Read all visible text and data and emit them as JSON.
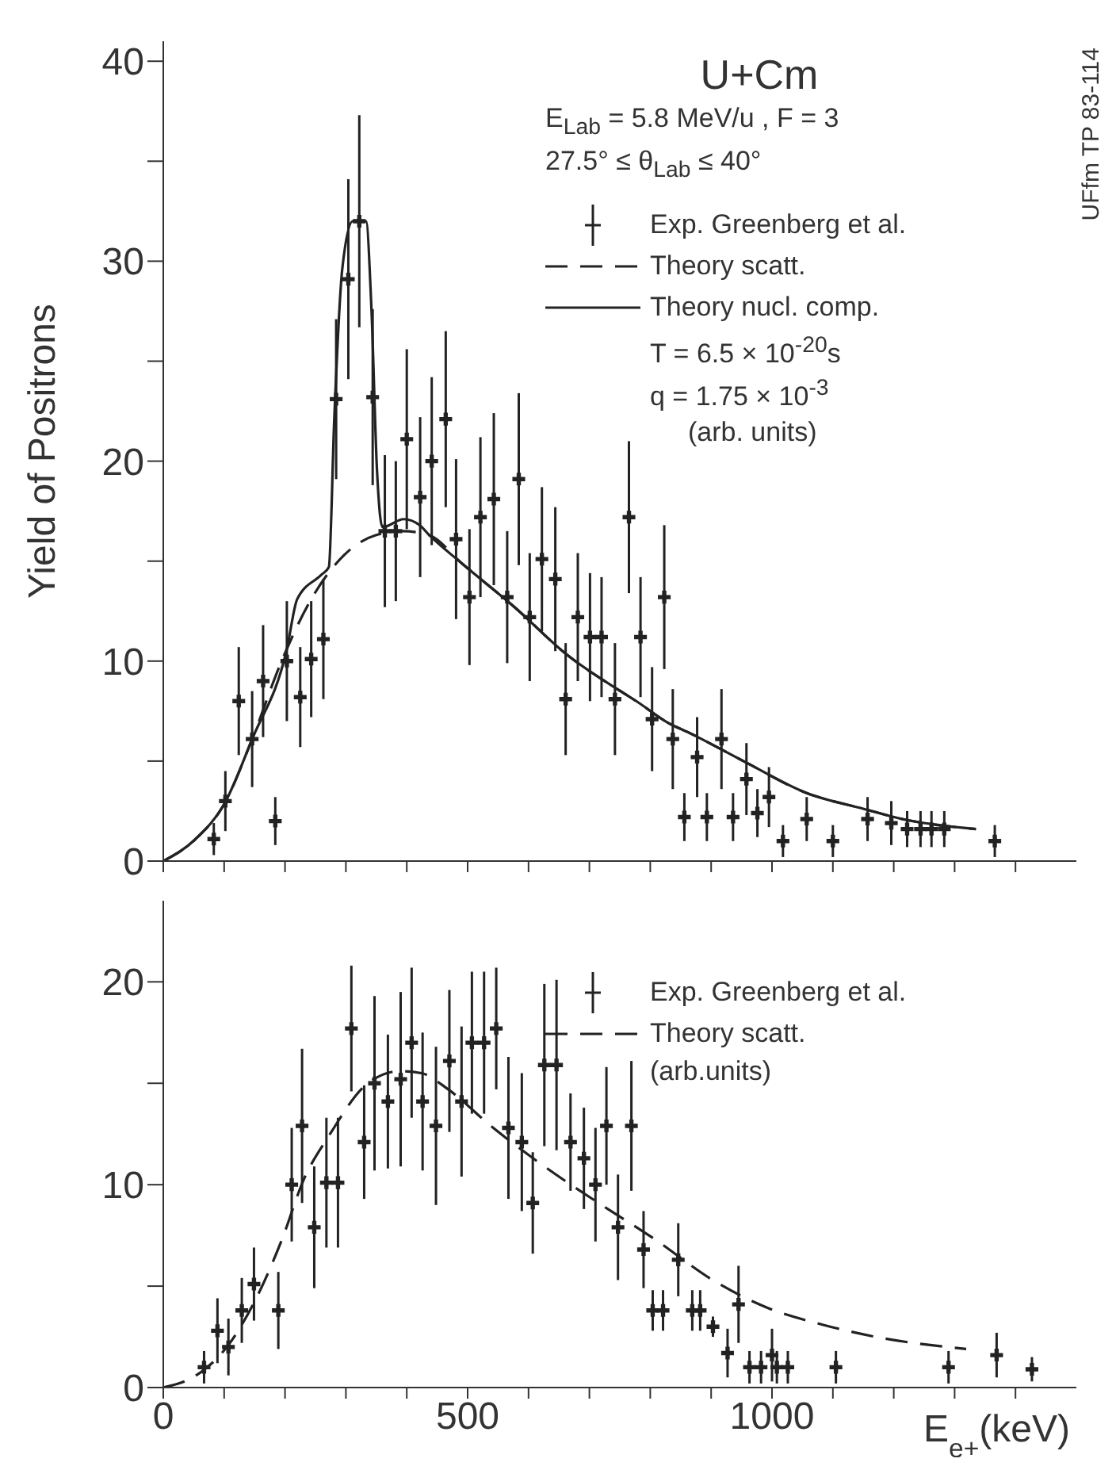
{
  "chart_data": [
    {
      "type": "scatter",
      "title": "U+Cm",
      "subtitle": "E$_{Lab}$ = 5.8 MeV/u , F = 3",
      "ylabel": "Yield of Positrons",
      "legend": "top right",
      "tick_labels": "y",
      "annotations": [
        "27.5° ≤ θ$_{Lab}$ ≤ 40°",
        "T = 6.5 × 10$^{-20}$s",
        "q = 1.75 × 10$^{-3}$",
        "(arb. units)",
        "UFfm TP 83-114"
      ],
      "xlim": [
        0,
        1500
      ],
      "xticks": [
        0,
        {
          "value": 100,
          "label": null
        },
        {
          "value": 200,
          "label": null
        },
        {
          "value": 300,
          "label": null
        },
        {
          "value": 400,
          "label": null
        },
        500,
        {
          "value": 600,
          "label": null
        },
        {
          "value": 700,
          "label": null
        },
        {
          "value": 800,
          "label": null
        },
        {
          "value": 900,
          "label": null
        },
        1000,
        {
          "value": 1100,
          "label": null
        },
        {
          "value": 1200,
          "label": null
        },
        {
          "value": 1300,
          "label": null
        },
        {
          "value": 1400,
          "label": null
        }
      ],
      "ylim": [
        0,
        41
      ],
      "yticks": [
        0,
        {
          "value": 5,
          "label": null
        },
        10,
        {
          "value": 15,
          "label": null
        },
        20,
        {
          "value": 25,
          "label": null
        },
        30,
        {
          "value": 35,
          "label": null
        },
        40
      ],
      "series": [
        {
          "name": "Exp. Greenberg et al.",
          "type": "scatter",
          "marker": "cross",
          "color": "#222222",
          "x": [
            83,
            102,
            124,
            146,
            164,
            184,
            203,
            225,
            243,
            263,
            284,
            304,
            322,
            344,
            364,
            382,
            400,
            422,
            441,
            464,
            481,
            503,
            521,
            543,
            565,
            584,
            602,
            622,
            644,
            661,
            681,
            701,
            720,
            742,
            765,
            784,
            803,
            823,
            837,
            856,
            877,
            893,
            917,
            936,
            958,
            976,
            995,
            1018,
            1057,
            1100,
            1157,
            1196,
            1222,
            1244,
            1262,
            1283,
            1366
          ],
          "values": [
            1.1,
            3.0,
            8.0,
            6.1,
            9.0,
            2.0,
            10.0,
            8.2,
            10.1,
            11.1,
            23.1,
            29.1,
            32.0,
            23.2,
            16.5,
            16.5,
            21.1,
            18.2,
            20.0,
            22.1,
            16.1,
            13.2,
            17.2,
            18.1,
            13.2,
            19.1,
            12.2,
            15.1,
            14.1,
            8.1,
            12.2,
            11.2,
            11.2,
            8.1,
            17.2,
            11.2,
            7.1,
            13.2,
            6.1,
            2.2,
            5.2,
            2.2,
            6.1,
            2.2,
            4.1,
            2.4,
            3.2,
            1.0,
            2.1,
            1.0,
            2.1,
            1.9,
            1.6,
            1.6,
            1.6,
            1.6,
            1.0
          ],
          "errors": [
            0.8,
            1.5,
            2.7,
            2.4,
            2.8,
            1.2,
            3.0,
            2.5,
            2.9,
            3.0,
            4.0,
            5.0,
            5.3,
            4.4,
            3.8,
            3.5,
            4.5,
            4.0,
            4.2,
            4.4,
            4.0,
            3.4,
            4.0,
            4.3,
            3.3,
            4.3,
            3.2,
            3.6,
            3.6,
            2.8,
            3.2,
            3.2,
            3.0,
            2.8,
            3.8,
            3.0,
            2.6,
            3.6,
            2.5,
            1.2,
            2.0,
            1.2,
            2.5,
            1.2,
            1.8,
            1.2,
            1.5,
            0.8,
            1.1,
            0.8,
            1.1,
            1.1,
            0.9,
            0.9,
            0.9,
            0.9,
            0.8
          ]
        },
        {
          "name": "Theory scatt.",
          "type": "line",
          "line_style": "dashed",
          "color": "#222222",
          "x": [
            0,
            53,
            101,
            146,
            193,
            245,
            297,
            349,
            393,
            437,
            490,
            577,
            664,
            751,
            777,
            830,
            865,
            953,
            1057,
            1152,
            1214,
            1335
          ],
          "values": [
            0,
            1.1,
            2.9,
            6.1,
            9.9,
            13.2,
            15.3,
            16.3,
            16.5,
            16.3,
            14.9,
            12.7,
            10.3,
            8.5,
            8.0,
            6.9,
            6.4,
            5.0,
            3.4,
            2.6,
            2.1,
            1.6
          ]
        },
        {
          "name": "Theory nucl. comp.",
          "type": "line",
          "line_style": "solid",
          "color": "#222222",
          "x": [
            0,
            53,
            101,
            146,
            203,
            220,
            259,
            272,
            281,
            294,
            311,
            333,
            342,
            351,
            360,
            395,
            421,
            437,
            490,
            577,
            664,
            751,
            777,
            830,
            865,
            953,
            1057,
            1152,
            1214,
            1335
          ],
          "values": [
            0,
            1.1,
            2.9,
            6.1,
            10.6,
            13.1,
            14.3,
            14.7,
            22.2,
            29.6,
            32.0,
            32.0,
            27.6,
            19.6,
            16.7,
            17.1,
            16.8,
            16.3,
            14.9,
            12.7,
            10.3,
            8.5,
            8.0,
            6.9,
            6.4,
            5.0,
            3.4,
            2.6,
            2.1,
            1.6
          ]
        }
      ]
    },
    {
      "type": "scatter",
      "xlabel": "E$_{e+}$(keV)",
      "legend": "top right",
      "annotations": [
        "(arb.units)"
      ],
      "xlim": [
        0,
        1500
      ],
      "xticks": [
        0,
        {
          "value": 100,
          "label": null
        },
        {
          "value": 200,
          "label": null
        },
        {
          "value": 300,
          "label": null
        },
        {
          "value": 400,
          "label": null
        },
        500,
        {
          "value": 600,
          "label": null
        },
        {
          "value": 700,
          "label": null
        },
        {
          "value": 800,
          "label": null
        },
        {
          "value": 900,
          "label": null
        },
        1000,
        {
          "value": 1100,
          "label": null
        },
        {
          "value": 1200,
          "label": null
        },
        {
          "value": 1300,
          "label": null
        },
        {
          "value": 1400,
          "label": null
        }
      ],
      "ylim": [
        0,
        24
      ],
      "yticks": [
        0,
        {
          "value": 5,
          "label": null
        },
        10,
        {
          "value": 15,
          "label": null
        },
        20
      ],
      "series": [
        {
          "name": "Exp. Greenberg et al.",
          "type": "scatter",
          "marker": "cross",
          "color": "#222222",
          "x": [
            67,
            89,
            107,
            129,
            149,
            189,
            211,
            228,
            248,
            268,
            287,
            309,
            330,
            347,
            369,
            390,
            408,
            426,
            448,
            470,
            490,
            507,
            527,
            547,
            567,
            589,
            607,
            626,
            646,
            669,
            691,
            710,
            728,
            747,
            769,
            789,
            804,
            821,
            846,
            869,
            882,
            903,
            927,
            945,
            963,
            982,
            1000,
            1008,
            1026,
            1105,
            1290,
            1369,
            1427
          ],
          "values": [
            1.0,
            2.8,
            2.0,
            3.8,
            5.1,
            3.8,
            10.0,
            12.9,
            7.9,
            10.1,
            10.1,
            17.7,
            12.1,
            15.0,
            14.1,
            15.2,
            17.0,
            14.1,
            12.9,
            16.1,
            14.1,
            17.0,
            17.0,
            17.7,
            12.8,
            12.1,
            9.1,
            15.9,
            15.9,
            12.1,
            11.3,
            10.0,
            12.9,
            7.9,
            12.9,
            6.8,
            3.8,
            3.8,
            6.3,
            3.8,
            3.8,
            3.0,
            1.7,
            4.1,
            1.0,
            1.0,
            1.6,
            1.0,
            1.0,
            1.0,
            1.0,
            1.6,
            0.9
          ],
          "errors": [
            0.8,
            1.6,
            1.4,
            1.6,
            1.8,
            1.9,
            2.8,
            3.8,
            3.0,
            3.2,
            3.2,
            3.1,
            2.8,
            4.3,
            3.3,
            4.3,
            3.7,
            3.4,
            3.9,
            3.5,
            3.7,
            3.5,
            3.5,
            3.0,
            3.5,
            3.4,
            2.5,
            4.0,
            4.2,
            2.4,
            2.5,
            2.8,
            2.9,
            2.6,
            3.2,
            1.9,
            1.0,
            1.0,
            1.8,
            1.0,
            1.0,
            0.5,
            1.2,
            1.9,
            0.8,
            0.8,
            1.3,
            0.8,
            0.8,
            0.8,
            0.8,
            1.1,
            0.6
          ]
        },
        {
          "name": "Theory scatt.",
          "type": "line",
          "line_style": "dashed",
          "color": "#222222",
          "x": [
            0,
            54,
            107,
            151,
            195,
            230,
            274,
            336,
            389,
            424,
            468,
            538,
            626,
            715,
            803,
            908,
            995,
            1083,
            1170,
            1319
          ],
          "values": [
            0,
            0.6,
            2.1,
            4.3,
            7.3,
            10.2,
            12.5,
            15.0,
            15.6,
            15.5,
            14.7,
            12.9,
            10.9,
            9.1,
            7.4,
            5.2,
            3.9,
            3.1,
            2.5,
            1.9
          ]
        }
      ]
    }
  ]
}
